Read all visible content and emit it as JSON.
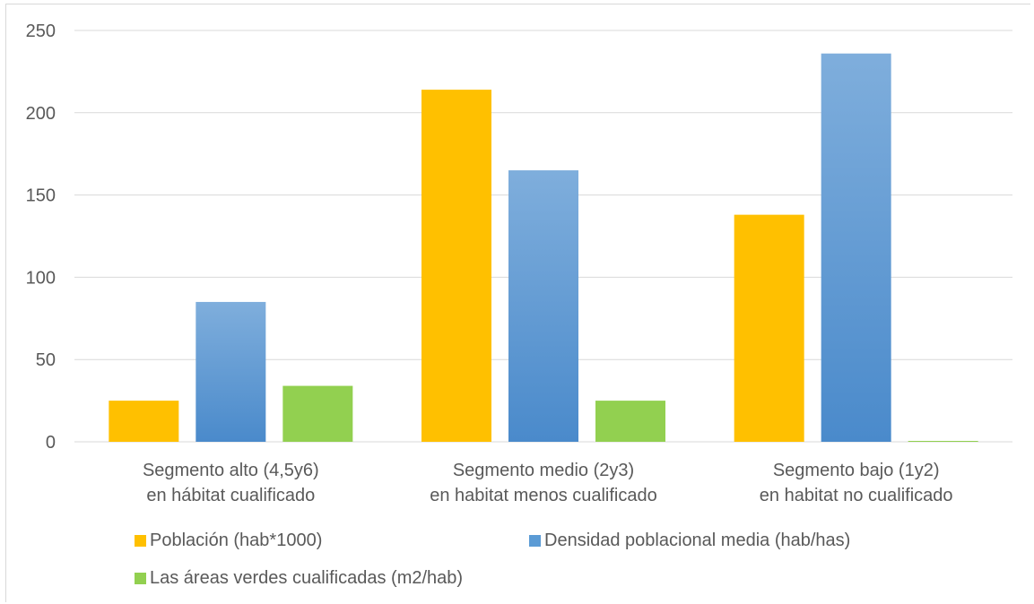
{
  "chart_data": {
    "type": "bar",
    "title": "",
    "xlabel": "",
    "ylabel": "",
    "ylim": [
      0,
      250
    ],
    "yticks": [
      "0",
      "50",
      "100",
      "150",
      "200",
      "250"
    ],
    "grid": true,
    "legend_position": "bottom",
    "categories": [
      [
        "Segmento alto (4,5y6)",
        "en hábitat cualificado"
      ],
      [
        "Segmento medio (2y3)",
        "en habitat menos cualificado"
      ],
      [
        "Segmento bajo (1y2)",
        "en habitat no cualificado"
      ]
    ],
    "series": [
      {
        "name": "Población (hab*1000)",
        "color": "#FFC000",
        "values": [
          25,
          214,
          138
        ]
      },
      {
        "name": "Densidad poblacional media (hab/has)",
        "color": "#5B9BD5",
        "values": [
          85,
          165,
          236
        ]
      },
      {
        "name": "Las áreas verdes cualificadas (m2/hab)",
        "color": "#92D050",
        "values": [
          34,
          25,
          0.5
        ]
      }
    ]
  }
}
